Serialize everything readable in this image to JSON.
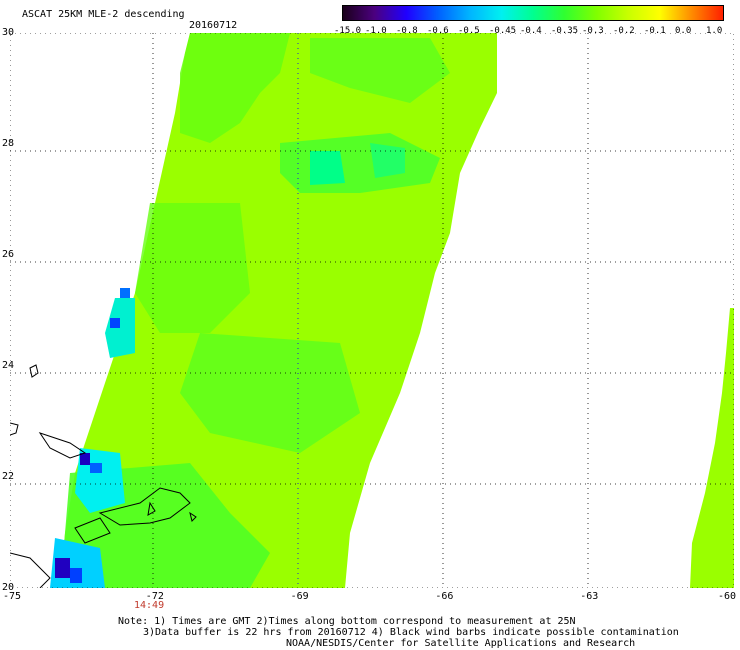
{
  "title": "ASCAT 25KM MLE-2 descending",
  "date": "20160712",
  "colorbar": {
    "labels": [
      "-15.0",
      "-1.0",
      "-0.8",
      "-0.6",
      "-0.5",
      "-0.45",
      "-0.4",
      "-0.35",
      "-0.3",
      "-0.2",
      "-0.1",
      "0.0",
      "1.0"
    ],
    "colors": [
      "#1a001a",
      "#4b007f",
      "#2000ff",
      "#0060ff",
      "#00b4ff",
      "#00f0f0",
      "#00ff90",
      "#30ff30",
      "#80ff00",
      "#c8ff00",
      "#ffff00",
      "#ff8c00",
      "#ff2000"
    ]
  },
  "axes": {
    "lon_range": [
      -75,
      -60
    ],
    "lat_range": [
      20,
      30
    ],
    "x_ticks": [
      "-75",
      "-72",
      "-69",
      "-66",
      "-63",
      "-60"
    ],
    "y_ticks": [
      "30",
      "28",
      "26",
      "24",
      "22",
      "20"
    ]
  },
  "time_label": "14:49",
  "notes": [
    "Note: 1) Times are GMT 2)Times along bottom correspond to measurement at 25N",
    "3)Data buffer is 22 hrs from 20160712 4) Black wind barbs indicate possible contamination",
    "NOAA/NESDIS/Center for Satellite Applications and Research"
  ],
  "colors": {
    "main_field": "#9aff00",
    "green": "#40ff20",
    "teal": "#00ff88",
    "cyan": "#00f0f0",
    "blue": "#0044ff",
    "navy": "#1a00a0"
  }
}
